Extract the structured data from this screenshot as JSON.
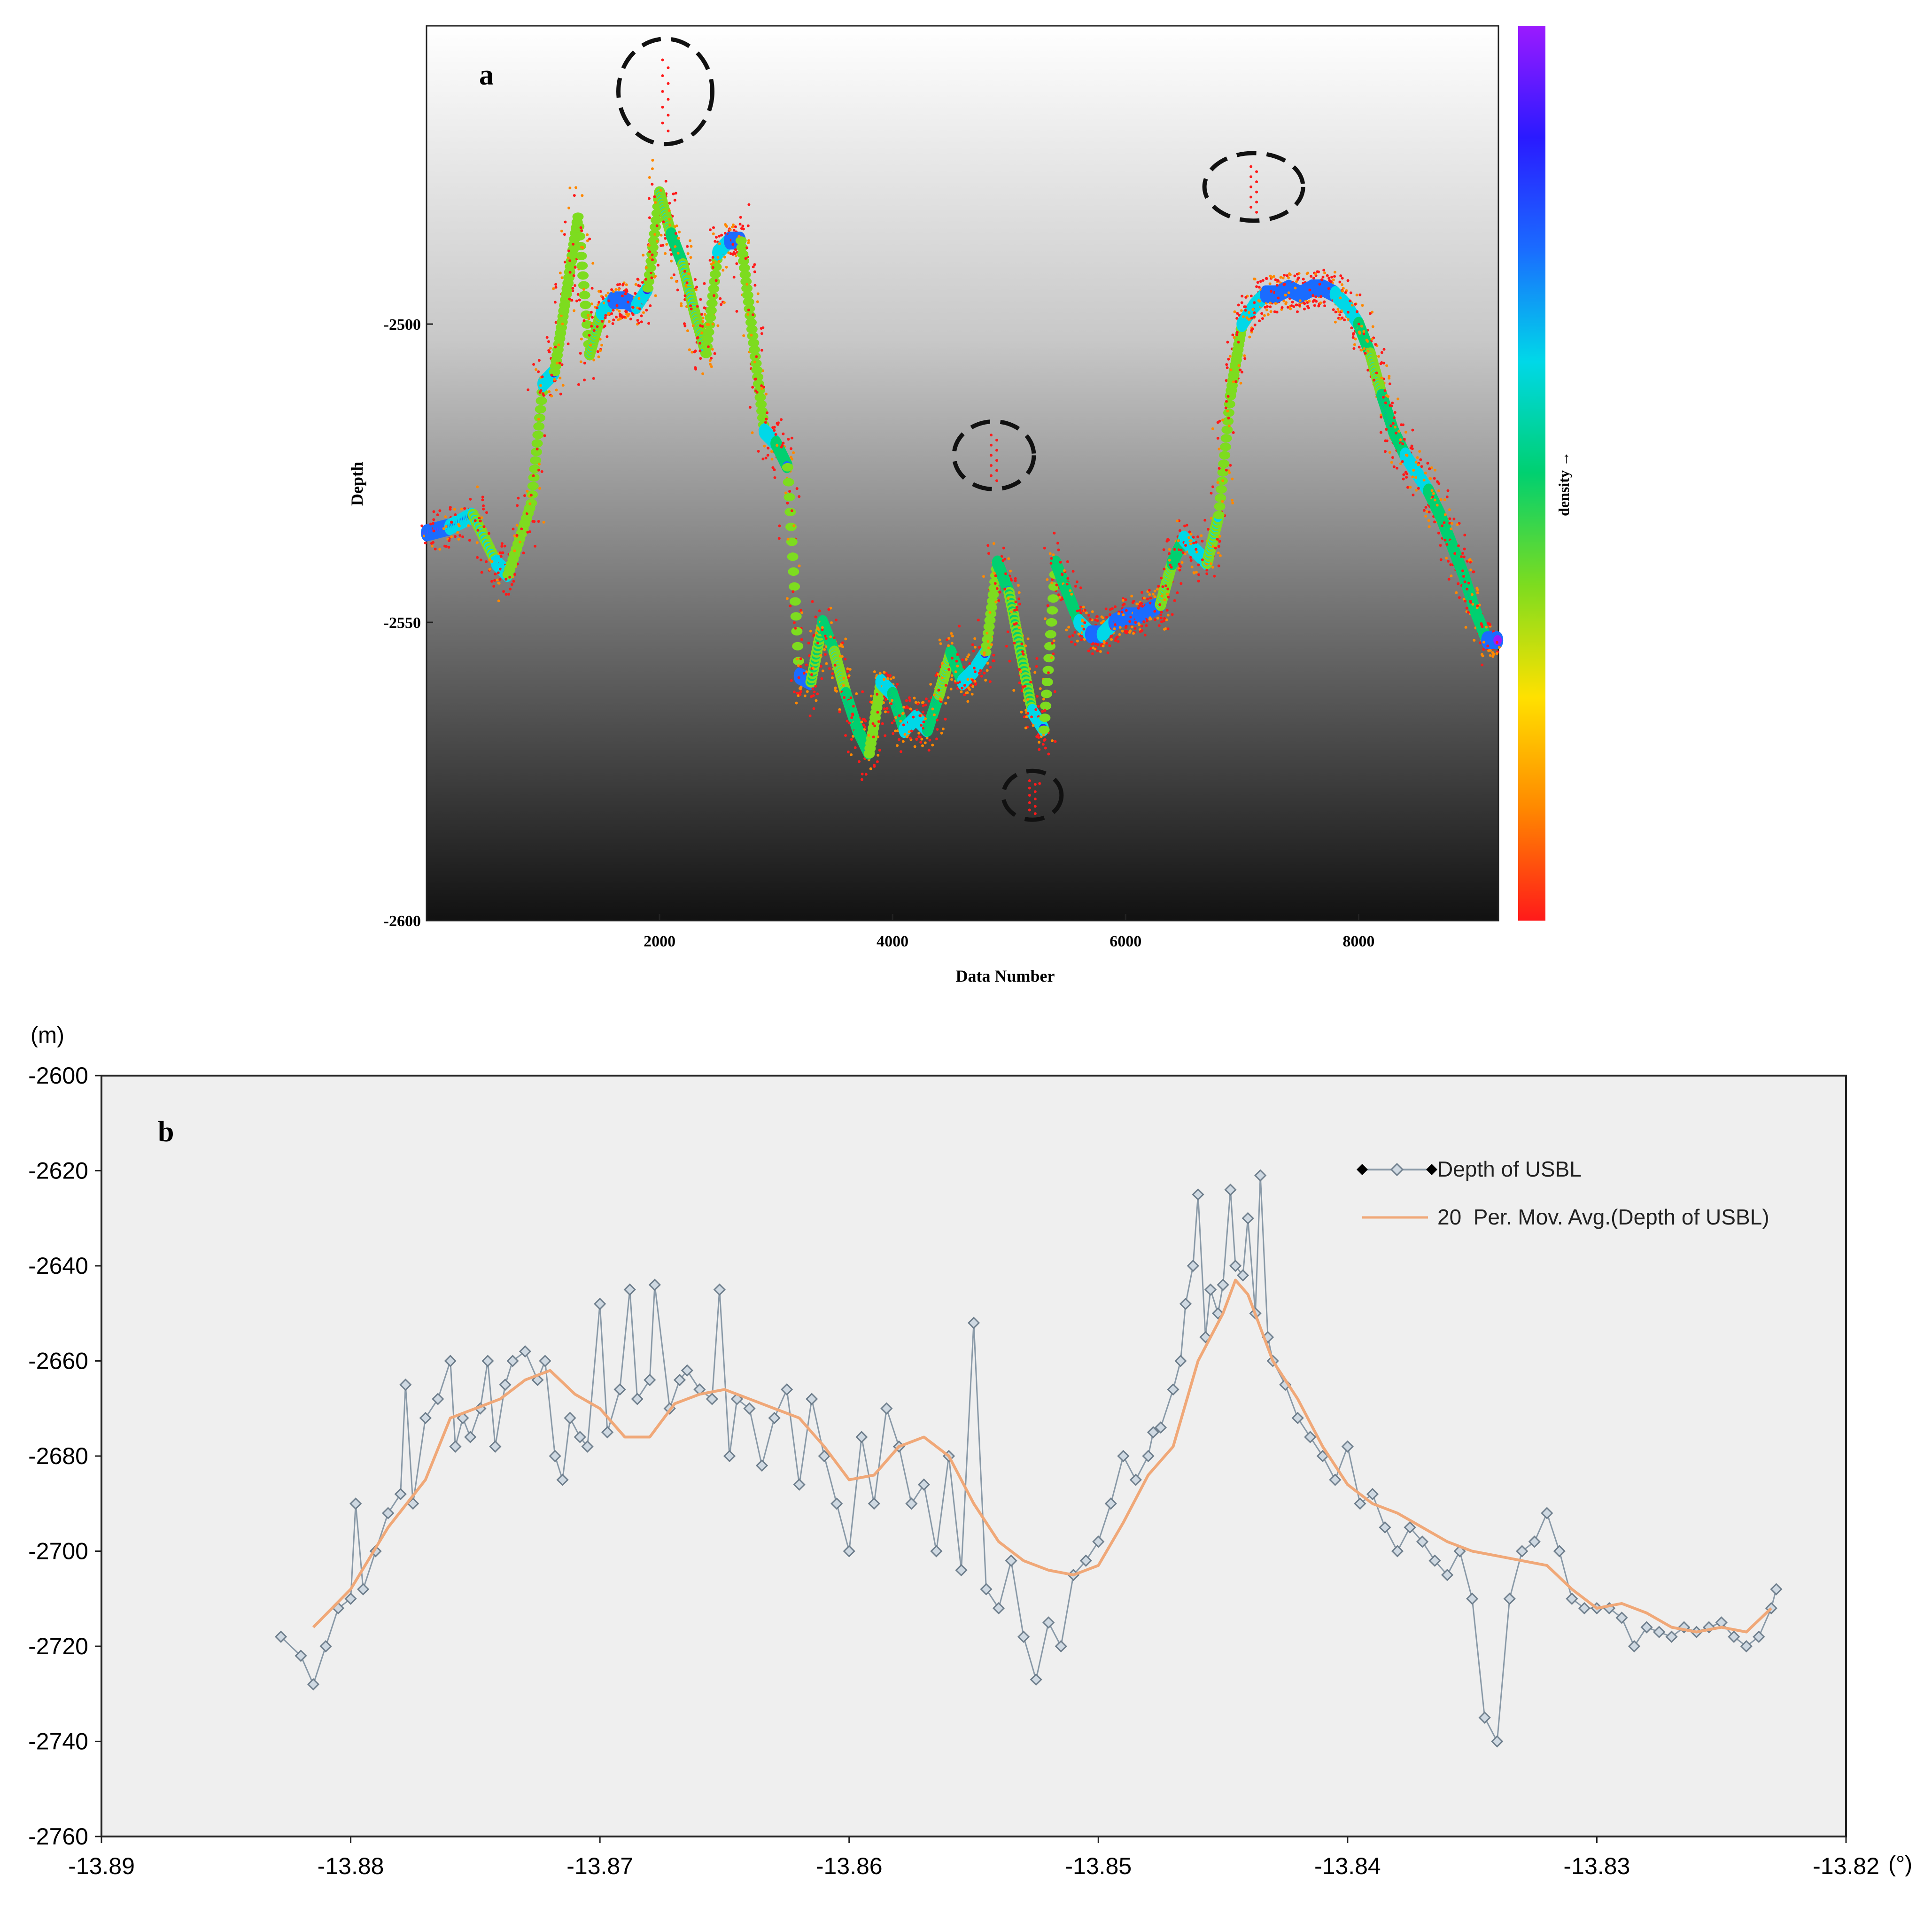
{
  "chart_data": [
    {
      "type": "scatter",
      "panel_label": "a",
      "xlabel": "Data Number",
      "ylabel": "Depth",
      "xlim": [
        0,
        9200
      ],
      "ylim": [
        -2600,
        -2450
      ],
      "y_inverted": true,
      "x_ticks": [
        "2000",
        "4000",
        "6000",
        "8000"
      ],
      "x_tick_values": [
        2000,
        4000,
        6000,
        8000
      ],
      "y_ticks": [
        "-2500",
        "-2550",
        "-2600"
      ],
      "y_tick_values": [
        -2500,
        -2550,
        -2600
      ],
      "colorbar_label": "density →",
      "colorbar_colors": [
        "#ff1a1a",
        "#ff8800",
        "#ffe100",
        "#7ddc1f",
        "#00d070",
        "#00d8e8",
        "#1a6cff",
        "#2a1aff",
        "#9b1aff"
      ],
      "background_gradient": [
        "#ffffff",
        "#111111"
      ],
      "outlier_circles": [
        {
          "x": 2050,
          "y": -2461
        },
        {
          "x": 7100,
          "y": -2477
        },
        {
          "x": 4870,
          "y": -2522
        },
        {
          "x": 5200,
          "y": -2579
        }
      ],
      "series": [
        {
          "x": [
            0,
            200,
            400,
            600,
            700,
            900,
            1000,
            1100,
            1200,
            1300,
            1400,
            1500,
            1600,
            1700,
            1800,
            1900,
            2000,
            2100,
            2200,
            2300,
            2400,
            2500,
            2600,
            2700,
            2800,
            2900,
            3000,
            3100,
            3200,
            3300,
            3400,
            3500,
            3600,
            3700,
            3800,
            3900,
            4000,
            4100,
            4200,
            4300,
            4400,
            4500,
            4600,
            4700,
            4800,
            4900,
            5000,
            5100,
            5200,
            5300,
            5400,
            5500,
            5600,
            5700,
            5800,
            5900,
            6000,
            6100,
            6200,
            6300,
            6400,
            6500,
            6600,
            6700,
            6800,
            6900,
            7000,
            7100,
            7200,
            7300,
            7400,
            7500,
            7600,
            7700,
            7800,
            7900,
            8000,
            8100,
            8200,
            8300,
            8400,
            8500,
            8600,
            8700,
            8800,
            8900,
            9000,
            9100,
            9200
          ],
          "y": [
            -2535,
            -2534,
            -2532,
            -2540,
            -2542,
            -2530,
            -2510,
            -2508,
            -2495,
            -2482,
            -2505,
            -2498,
            -2496,
            -2496,
            -2497,
            -2494,
            -2478,
            -2485,
            -2490,
            -2498,
            -2505,
            -2488,
            -2486,
            -2486,
            -2502,
            -2518,
            -2520,
            -2524,
            -2559,
            -2560,
            -2550,
            -2555,
            -2562,
            -2568,
            -2572,
            -2560,
            -2562,
            -2568,
            -2566,
            -2568,
            -2562,
            -2555,
            -2560,
            -2558,
            -2555,
            -2540,
            -2545,
            -2555,
            -2565,
            -2568,
            -2540,
            -2545,
            -2550,
            -2552,
            -2552,
            -2550,
            -2549,
            -2549,
            -2548,
            -2547,
            -2540,
            -2536,
            -2538,
            -2540,
            -2532,
            -2512,
            -2500,
            -2497,
            -2495,
            -2495,
            -2494,
            -2495,
            -2494,
            -2494,
            -2495,
            -2497,
            -2500,
            -2505,
            -2512,
            -2518,
            -2522,
            -2525,
            -2528,
            -2532,
            -2537,
            -2542,
            -2548,
            -2553,
            -2553
          ]
        }
      ]
    },
    {
      "type": "line",
      "panel_label": "b",
      "xlim": [
        -13.89,
        -13.82
      ],
      "ylim": [
        -2760,
        -2600
      ],
      "x_unit": "(°)",
      "y_unit": "(m)",
      "x_ticks": [
        "-13.89",
        "-13.88",
        "-13.87",
        "-13.86",
        "-13.85",
        "-13.84",
        "-13.83",
        "-13.82"
      ],
      "x_tick_values": [
        -13.89,
        -13.88,
        -13.87,
        -13.86,
        -13.85,
        -13.84,
        -13.83,
        -13.82
      ],
      "y_ticks": [
        "-2600",
        "-2620",
        "-2640",
        "-2660",
        "-2680",
        "-2700",
        "-2720",
        "-2740",
        "-2760"
      ],
      "y_tick_values": [
        -2600,
        -2620,
        -2640,
        -2660,
        -2680,
        -2700,
        -2720,
        -2740,
        -2760
      ],
      "legend": {
        "position": "top-right"
      },
      "series": [
        {
          "name": "Depth of USBL",
          "color": "#8a9aa8",
          "marker": "diamond",
          "marker_fill": "#cfd9e2",
          "x": [
            -13.8828,
            -13.882,
            -13.8815,
            -13.881,
            -13.8805,
            -13.88,
            -13.8798,
            -13.8795,
            -13.879,
            -13.8785,
            -13.878,
            -13.8778,
            -13.8775,
            -13.877,
            -13.8765,
            -13.876,
            -13.8758,
            -13.8755,
            -13.8752,
            -13.8748,
            -13.8745,
            -13.8742,
            -13.8738,
            -13.8735,
            -13.873,
            -13.8725,
            -13.8722,
            -13.8718,
            -13.8715,
            -13.8712,
            -13.8708,
            -13.8705,
            -13.87,
            -13.8697,
            -13.8692,
            -13.8688,
            -13.8685,
            -13.868,
            -13.8678,
            -13.8672,
            -13.8668,
            -13.8665,
            -13.866,
            -13.8655,
            -13.8652,
            -13.8648,
            -13.8645,
            -13.864,
            -13.8635,
            -13.863,
            -13.8625,
            -13.862,
            -13.8615,
            -13.861,
            -13.8605,
            -13.86,
            -13.8595,
            -13.859,
            -13.8585,
            -13.858,
            -13.8575,
            -13.857,
            -13.8565,
            -13.856,
            -13.8555,
            -13.855,
            -13.8545,
            -13.854,
            -13.8535,
            -13.853,
            -13.8525,
            -13.852,
            -13.8515,
            -13.851,
            -13.8505,
            -13.85,
            -13.8495,
            -13.849,
            -13.8485,
            -13.848,
            -13.8478,
            -13.8475,
            -13.847,
            -13.8467,
            -13.8465,
            -13.8462,
            -13.846,
            -13.8457,
            -13.8455,
            -13.8452,
            -13.845,
            -13.8447,
            -13.8445,
            -13.8442,
            -13.844,
            -13.8437,
            -13.8435,
            -13.8432,
            -13.843,
            -13.8425,
            -13.842,
            -13.8415,
            -13.841,
            -13.8405,
            -13.84,
            -13.8395,
            -13.839,
            -13.8385,
            -13.838,
            -13.8375,
            -13.837,
            -13.8365,
            -13.836,
            -13.8355,
            -13.835,
            -13.8345,
            -13.834,
            -13.8335,
            -13.833,
            -13.8325,
            -13.832,
            -13.8315,
            -13.831,
            -13.8305,
            -13.83,
            -13.8295,
            -13.829,
            -13.8285,
            -13.828,
            -13.8275,
            -13.827,
            -13.8265,
            -13.826,
            -13.8255,
            -13.825,
            -13.8245,
            -13.824,
            -13.8235,
            -13.823,
            -13.8228
          ],
          "y": [
            -2718,
            -2722,
            -2728,
            -2720,
            -2712,
            -2710,
            -2690,
            -2708,
            -2700,
            -2692,
            -2688,
            -2665,
            -2690,
            -2672,
            -2668,
            -2660,
            -2678,
            -2672,
            -2676,
            -2670,
            -2660,
            -2678,
            -2665,
            -2660,
            -2658,
            -2664,
            -2660,
            -2680,
            -2685,
            -2672,
            -2676,
            -2678,
            -2648,
            -2675,
            -2666,
            -2645,
            -2668,
            -2664,
            -2644,
            -2670,
            -2664,
            -2662,
            -2666,
            -2668,
            -2645,
            -2680,
            -2668,
            -2670,
            -2682,
            -2672,
            -2666,
            -2686,
            -2668,
            -2680,
            -2690,
            -2700,
            -2676,
            -2690,
            -2670,
            -2678,
            -2690,
            -2686,
            -2700,
            -2680,
            -2704,
            -2652,
            -2708,
            -2712,
            -2702,
            -2718,
            -2727,
            -2715,
            -2720,
            -2705,
            -2702,
            -2698,
            -2690,
            -2680,
            -2685,
            -2680,
            -2675,
            -2674,
            -2666,
            -2660,
            -2648,
            -2640,
            -2625,
            -2655,
            -2645,
            -2650,
            -2644,
            -2624,
            -2640,
            -2642,
            -2630,
            -2650,
            -2621,
            -2655,
            -2660,
            -2665,
            -2672,
            -2676,
            -2680,
            -2685,
            -2678,
            -2690,
            -2688,
            -2695,
            -2700,
            -2695,
            -2698,
            -2702,
            -2705,
            -2700,
            -2710,
            -2735,
            -2740,
            -2710,
            -2700,
            -2698,
            -2692,
            -2700,
            -2710,
            -2712,
            -2712,
            -2712,
            -2714,
            -2720,
            -2716,
            -2717,
            -2718,
            -2716,
            -2717,
            -2716,
            -2715,
            -2718,
            -2720,
            -2718,
            -2712,
            -2708
          ]
        },
        {
          "name": "20  Per. Mov. Avg.(Depth of USBL)",
          "color": "#f0a878",
          "x": [
            -13.8815,
            -13.88,
            -13.8785,
            -13.877,
            -13.876,
            -13.875,
            -13.874,
            -13.873,
            -13.872,
            -13.871,
            -13.87,
            -13.869,
            -13.868,
            -13.867,
            -13.866,
            -13.865,
            -13.864,
            -13.863,
            -13.862,
            -13.861,
            -13.86,
            -13.859,
            -13.858,
            -13.857,
            -13.856,
            -13.855,
            -13.854,
            -13.853,
            -13.852,
            -13.851,
            -13.85,
            -13.849,
            -13.848,
            -13.847,
            -13.846,
            -13.845,
            -13.8445,
            -13.844,
            -13.843,
            -13.842,
            -13.841,
            -13.84,
            -13.839,
            -13.838,
            -13.837,
            -13.836,
            -13.835,
            -13.834,
            -13.833,
            -13.832,
            -13.831,
            -13.83,
            -13.829,
            -13.828,
            -13.827,
            -13.826,
            -13.825,
            -13.824,
            -13.823
          ],
          "y": [
            -2716,
            -2708,
            -2695,
            -2685,
            -2672,
            -2670,
            -2668,
            -2664,
            -2662,
            -2667,
            -2670,
            -2676,
            -2676,
            -2669,
            -2667,
            -2666,
            -2668,
            -2670,
            -2672,
            -2678,
            -2685,
            -2684,
            -2678,
            -2676,
            -2680,
            -2690,
            -2698,
            -2702,
            -2704,
            -2705,
            -2703,
            -2694,
            -2684,
            -2678,
            -2660,
            -2650,
            -2643,
            -2646,
            -2660,
            -2668,
            -2678,
            -2686,
            -2690,
            -2692,
            -2695,
            -2698,
            -2700,
            -2701,
            -2702,
            -2703,
            -2708,
            -2712,
            -2711,
            -2713,
            -2716,
            -2717,
            -2716,
            -2717,
            -2712
          ]
        }
      ]
    }
  ]
}
